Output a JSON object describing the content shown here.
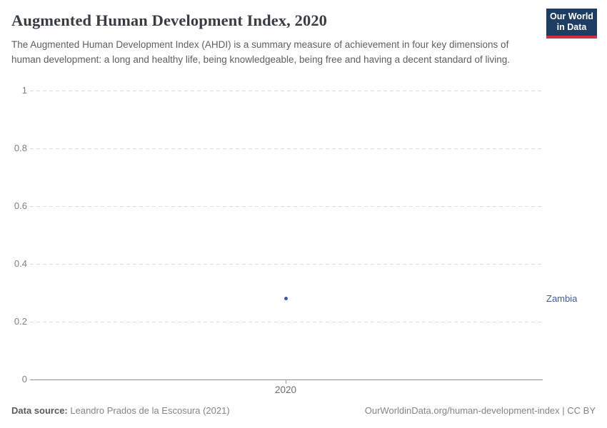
{
  "header": {
    "title": "Augmented Human Development Index, 2020",
    "subtitle": "The Augmented Human Development Index (AHDI) is a summary measure of achievement in four key dimensions of human development: a long and healthy life, being knowledgeable, being free and having a decent standard of living.",
    "logo": {
      "line1": "Our World",
      "line2": "in Data",
      "bg_color": "#1d3d63",
      "accent_color": "#d0314a"
    }
  },
  "chart_data": {
    "type": "scatter",
    "title": "Augmented Human Development Index, 2020",
    "x": [
      2020
    ],
    "x_tick_labels": [
      "2020"
    ],
    "y_ticks": [
      0,
      0.2,
      0.4,
      0.6,
      0.8,
      1
    ],
    "ylim": [
      0,
      1
    ],
    "grid": "horizontal-dashed",
    "series": [
      {
        "name": "Zambia",
        "color": "#3e5c99",
        "points": [
          {
            "x": 2020,
            "y": 0.28
          }
        ]
      }
    ],
    "legend_position": "right-entity-label"
  },
  "footer": {
    "source_label": "Data source:",
    "source_value": "Leandro Prados de la Escosura (2021)",
    "attribution": "OurWorldinData.org/human-development-index | CC BY"
  }
}
